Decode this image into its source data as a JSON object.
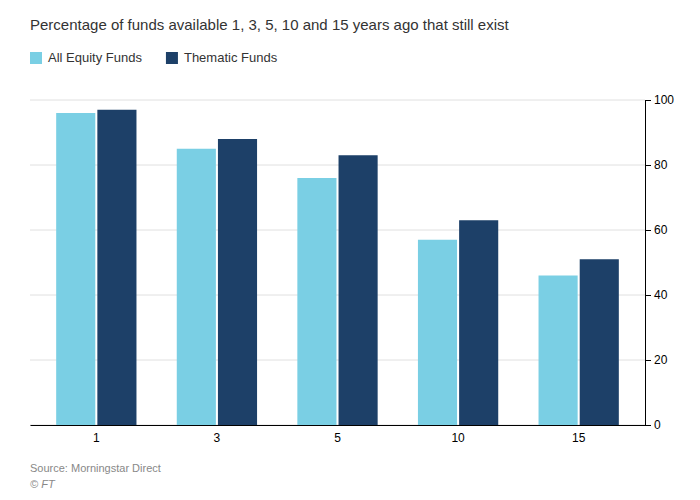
{
  "chart_data": {
    "type": "bar",
    "title": "Percentage of funds available 1, 3, 5, 10 and 15 years ago that still exist",
    "categories": [
      "1",
      "3",
      "5",
      "10",
      "15"
    ],
    "series": [
      {
        "name": "All Equity Funds",
        "color": "#7acfe4",
        "values": [
          96,
          85,
          76,
          57,
          46
        ]
      },
      {
        "name": "Thematic Funds",
        "color": "#1d4068",
        "values": [
          97,
          88,
          83,
          63,
          51
        ]
      }
    ],
    "ylim": [
      0,
      100
    ],
    "yticks": [
      0,
      20,
      40,
      60,
      80,
      100
    ],
    "grid": true,
    "legend": "top-left",
    "annotations": [
      "Source: Morningstar Direct",
      "© FT"
    ]
  }
}
